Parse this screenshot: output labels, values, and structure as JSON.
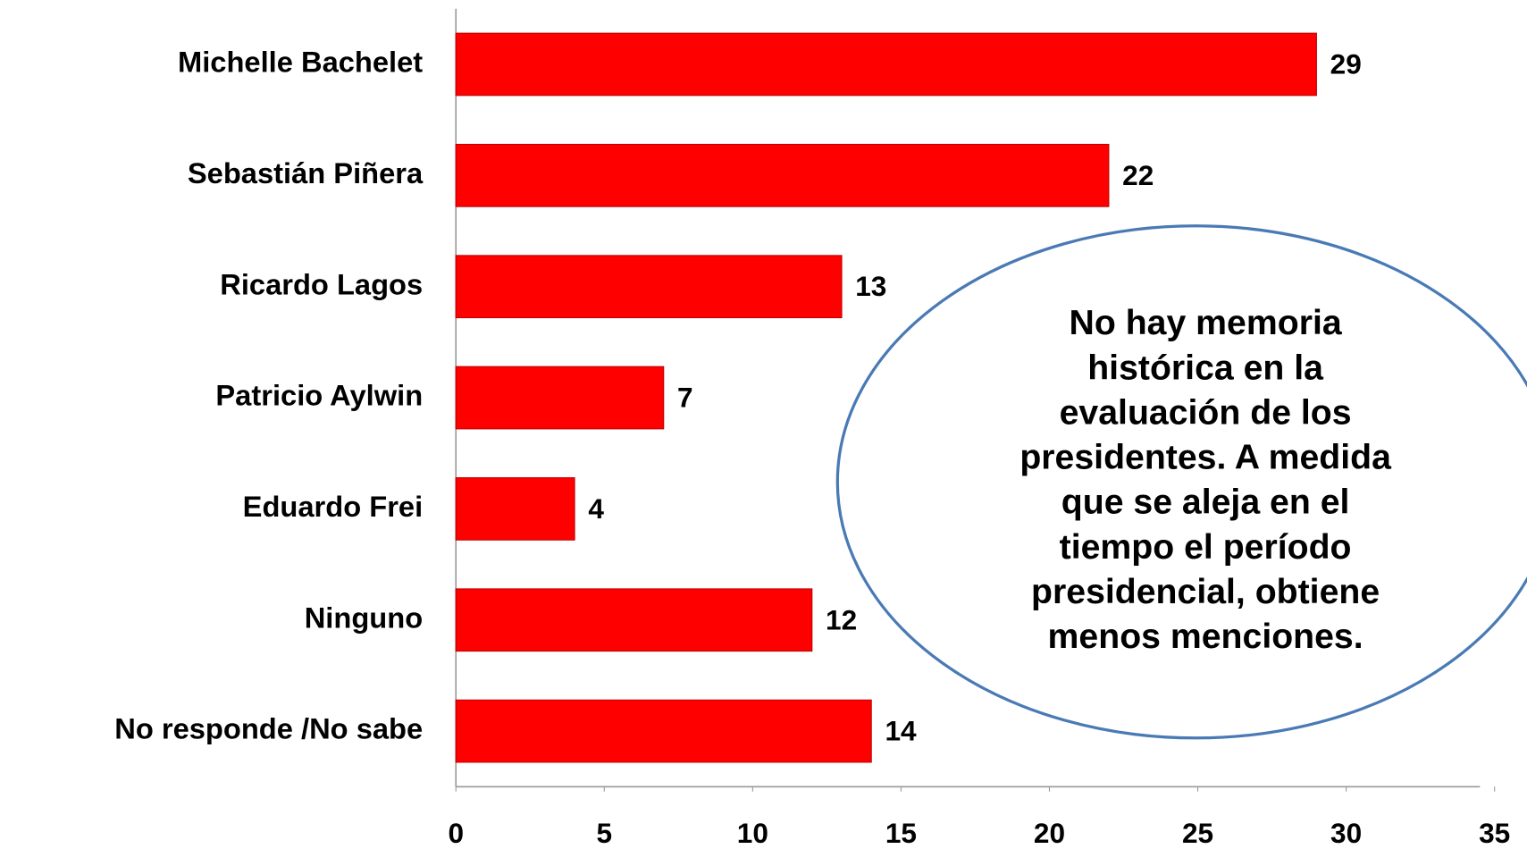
{
  "chart_data": {
    "type": "bar",
    "orientation": "horizontal",
    "categories": [
      "Michelle Bachelet",
      "Sebastián Piñera",
      "Ricardo Lagos",
      "Patricio Aylwin",
      "Eduardo Frei",
      "Ninguno",
      "No responde /No sabe"
    ],
    "values": [
      29,
      22,
      13,
      7,
      4,
      12,
      14
    ],
    "color": "#ff0000",
    "xlim": [
      0,
      35
    ],
    "xticks": [
      0,
      5,
      10,
      15,
      20,
      25,
      30,
      35
    ],
    "grid": false,
    "annotation": [
      "No hay memoria",
      "histórica en la",
      "evaluación de los",
      "presidentes. A medida",
      "que se aleja en el",
      "tiempo el período",
      "presidencial, obtiene",
      "menos menciones."
    ]
  }
}
